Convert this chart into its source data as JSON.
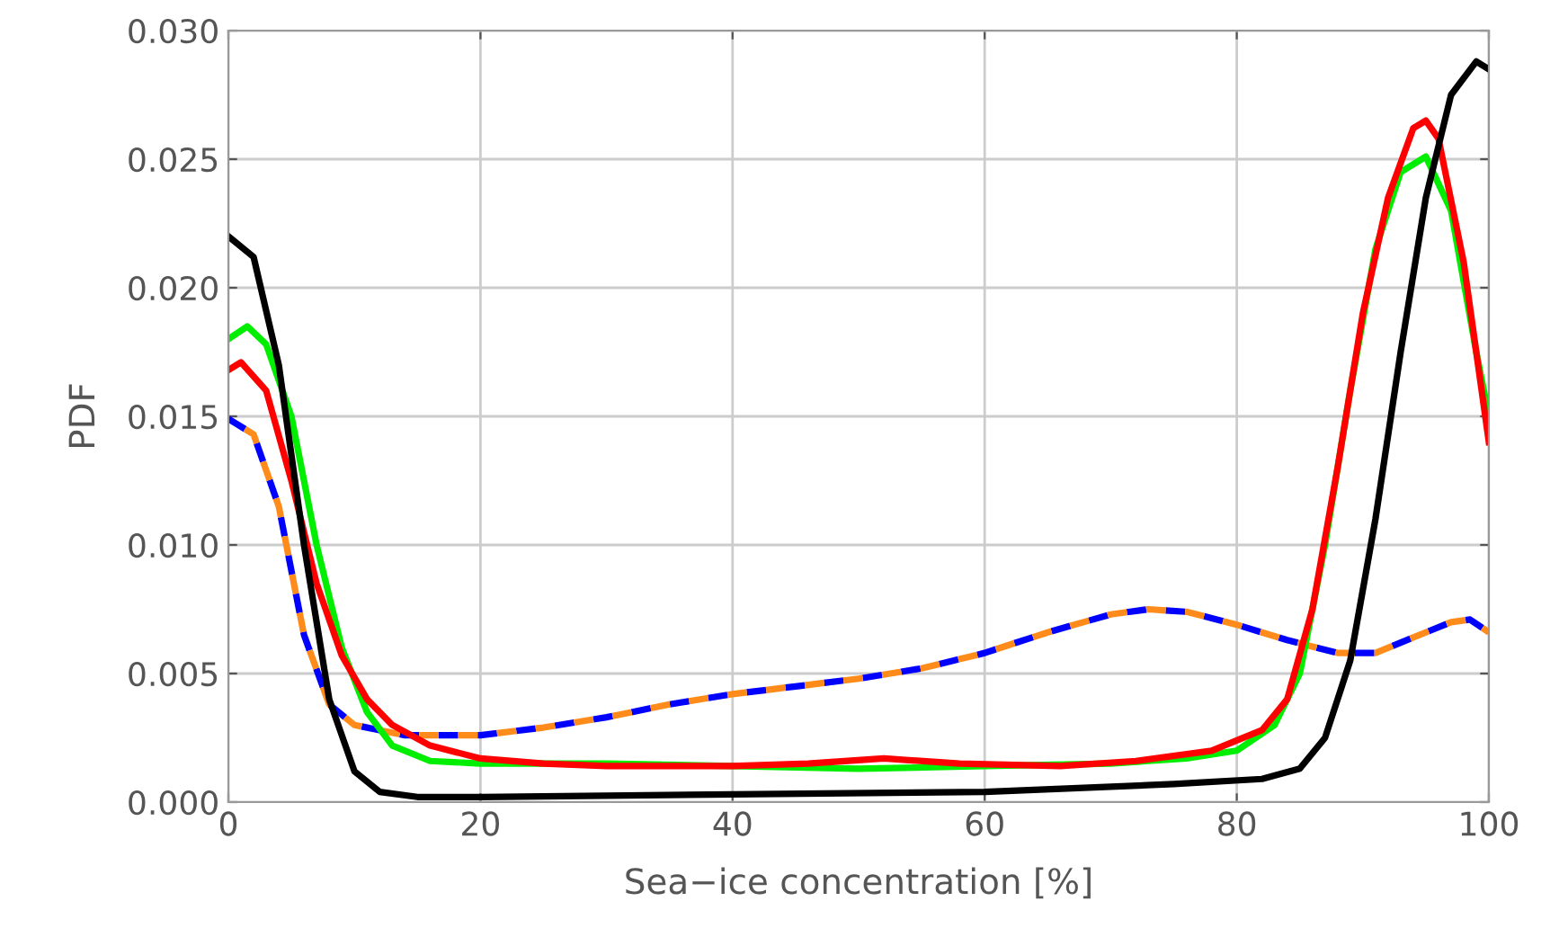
{
  "chart_data": {
    "type": "line",
    "xlabel": "Sea−ice concentration [%]",
    "ylabel": "PDF",
    "xlim": [
      0,
      100
    ],
    "ylim": [
      0,
      0.03
    ],
    "xticks": [
      0,
      20,
      40,
      60,
      80,
      100
    ],
    "yticks": [
      {
        "value": 0,
        "label": "0.000"
      },
      {
        "value": 0.005,
        "label": "0.005"
      },
      {
        "value": 0.01,
        "label": "0.010"
      },
      {
        "value": 0.015,
        "label": "0.015"
      },
      {
        "value": 0.02,
        "label": "0.020"
      },
      {
        "value": 0.025,
        "label": "0.025"
      },
      {
        "value": 0.03,
        "label": "0.030"
      }
    ],
    "grid": true,
    "series": [
      {
        "color": "#0000ff",
        "line_style": "dashed",
        "x": [
          0,
          2,
          4,
          6,
          8,
          10,
          14,
          20,
          25,
          30,
          35,
          40,
          45,
          50,
          55,
          60,
          65,
          70,
          73,
          76,
          80,
          84,
          88,
          91,
          94,
          97,
          98.5,
          100
        ],
        "values": [
          0.0149,
          0.0143,
          0.0115,
          0.0065,
          0.0038,
          0.003,
          0.0026,
          0.0026,
          0.0029,
          0.0033,
          0.0038,
          0.0042,
          0.0045,
          0.0048,
          0.0052,
          0.0058,
          0.0066,
          0.0073,
          0.0075,
          0.0074,
          0.0069,
          0.0063,
          0.0058,
          0.0058,
          0.0064,
          0.007,
          0.0071,
          0.0066
        ]
      },
      {
        "color": "#ff8c1a",
        "line_style": "dashed",
        "x": [
          0,
          2,
          4,
          6,
          8,
          10,
          14,
          20,
          25,
          30,
          35,
          40,
          45,
          50,
          55,
          60,
          65,
          70,
          73,
          76,
          80,
          84,
          88,
          91,
          94,
          97,
          98.5,
          100
        ],
        "values": [
          0.0149,
          0.0143,
          0.0115,
          0.0065,
          0.0038,
          0.003,
          0.0026,
          0.0026,
          0.0029,
          0.0033,
          0.0038,
          0.0042,
          0.0045,
          0.0048,
          0.0052,
          0.0058,
          0.0066,
          0.0073,
          0.0075,
          0.0074,
          0.0069,
          0.0063,
          0.0058,
          0.0058,
          0.0064,
          0.007,
          0.0071,
          0.0066
        ]
      },
      {
        "color": "#00ee00",
        "line_style": "solid",
        "x": [
          0,
          1.5,
          3,
          5,
          7,
          9,
          11,
          13,
          16,
          20,
          30,
          40,
          50,
          60,
          70,
          76,
          80,
          83,
          85,
          87,
          89,
          91,
          93,
          95,
          97,
          99,
          100
        ],
        "values": [
          0.018,
          0.0185,
          0.0178,
          0.015,
          0.01,
          0.006,
          0.0035,
          0.0022,
          0.0016,
          0.0015,
          0.0015,
          0.0014,
          0.0013,
          0.0014,
          0.0015,
          0.0017,
          0.002,
          0.003,
          0.005,
          0.01,
          0.016,
          0.0215,
          0.0245,
          0.0251,
          0.023,
          0.0175,
          0.015
        ]
      },
      {
        "color": "#ff0000",
        "line_style": "solid",
        "x": [
          0,
          1,
          3,
          5,
          7,
          9,
          11,
          13,
          16,
          20,
          25,
          30,
          40,
          46,
          52,
          58,
          66,
          72,
          78,
          82,
          84,
          86,
          88,
          90,
          92,
          94,
          95,
          96,
          98,
          100
        ],
        "values": [
          0.0168,
          0.0171,
          0.016,
          0.0125,
          0.0085,
          0.0057,
          0.004,
          0.003,
          0.0022,
          0.0017,
          0.0015,
          0.0014,
          0.0014,
          0.0015,
          0.0017,
          0.0015,
          0.0014,
          0.0016,
          0.002,
          0.0028,
          0.004,
          0.0075,
          0.013,
          0.019,
          0.0235,
          0.0262,
          0.0265,
          0.0258,
          0.021,
          0.014
        ]
      },
      {
        "color": "#000000",
        "line_style": "solid",
        "x": [
          0,
          2,
          4,
          6,
          8,
          10,
          12,
          15,
          20,
          40,
          60,
          75,
          82,
          85,
          87,
          89,
          91,
          93,
          95,
          97,
          99,
          100
        ],
        "values": [
          0.022,
          0.0212,
          0.017,
          0.01,
          0.004,
          0.0012,
          0.0004,
          0.0002,
          0.0002,
          0.0003,
          0.0004,
          0.0007,
          0.0009,
          0.0013,
          0.0025,
          0.0055,
          0.011,
          0.0175,
          0.0235,
          0.0275,
          0.0288,
          0.0285
        ]
      }
    ]
  }
}
